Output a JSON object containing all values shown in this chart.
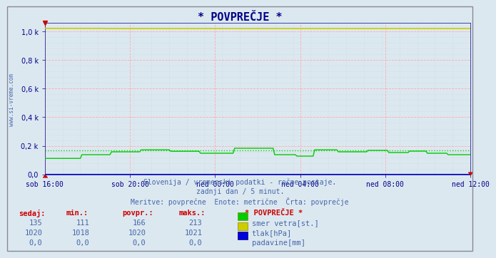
{
  "title": "* POVPREČJE *",
  "bg_color": "#dce8f0",
  "plot_bg_color": "#dce8f0",
  "grid_color_major": "#ffaaaa",
  "grid_color_minor": "#c0d4e0",
  "title_color": "#000088",
  "tick_color": "#000088",
  "text_color": "#4466aa",
  "red_color": "#cc0000",
  "xtick_labels": [
    "sob 16:00",
    "sob 20:00",
    "ned 00:00",
    "ned 04:00",
    "ned 08:00",
    "ned 12:00"
  ],
  "ytick_values": [
    0,
    200,
    400,
    600,
    800,
    1000
  ],
  "ylim": [
    0,
    1060
  ],
  "subtitle1": "Slovenija / vremenski podatki - ročne postaje.",
  "subtitle2": "zadnji dan / 5 minut.",
  "subtitle3": "Meritve: povprečne  Enote: metrične  Črta: povprečje",
  "table_headers": [
    "sedaj:",
    "min.:",
    "povpr.:",
    "maks.:"
  ],
  "table_row1": [
    "135",
    "111",
    "166",
    "213"
  ],
  "table_row2": [
    "1020",
    "1018",
    "1020",
    "1021"
  ],
  "table_row3": [
    "0,0",
    "0,0",
    "0,0",
    "0,0"
  ],
  "legend_label1": "smer vetra[st.]",
  "legend_label2": "tlak[hPa]",
  "legend_label3": "padavine[mm]",
  "legend_color1": "#00cc00",
  "legend_color2": "#cccc00",
  "legend_color3": "#0000dd",
  "watermark": "www.si-vreme.com",
  "n_points": 288
}
